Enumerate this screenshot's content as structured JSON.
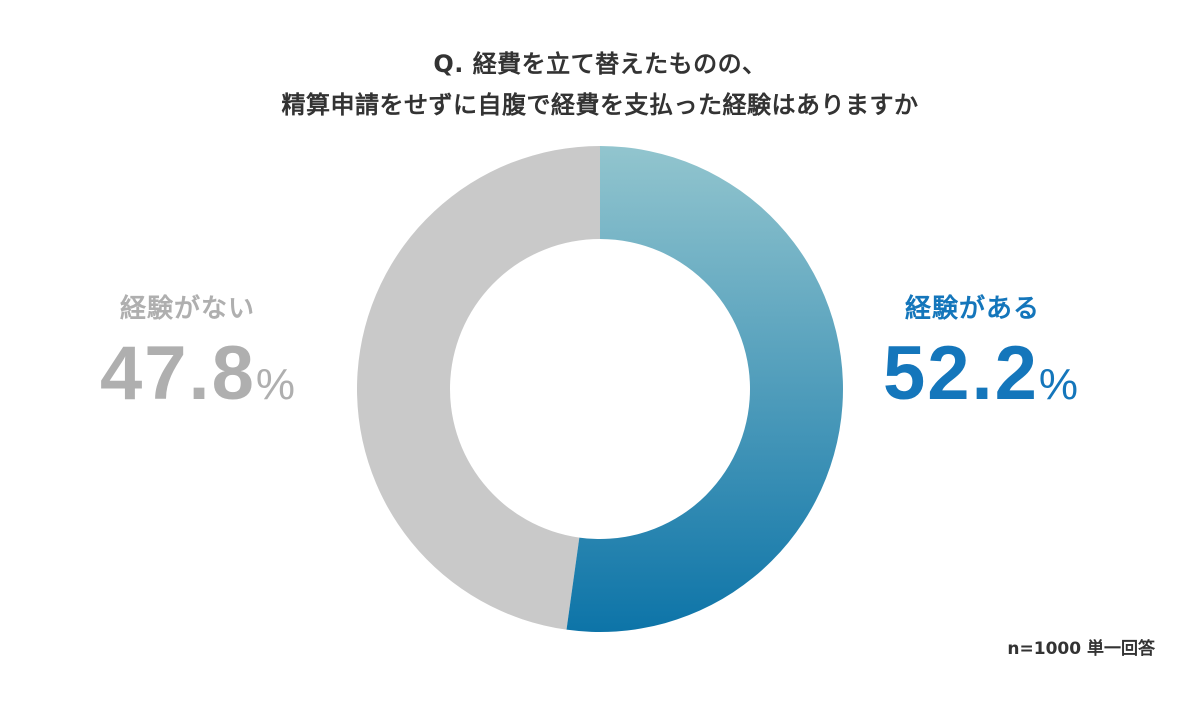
{
  "title": {
    "line1": "Q. 経費を立て替えたものの、",
    "line2": "精算申請をせずに自腹で経費を支払った経験はありますか"
  },
  "labels": {
    "no": {
      "name": "経験がない",
      "value": "47.8",
      "unit": "%"
    },
    "yes": {
      "name": "経験がある",
      "value": "52.2",
      "unit": "%"
    }
  },
  "footnote": "n=1000 単一回答",
  "colors": {
    "yes_gradient_top": "#92C5CE",
    "yes_gradient_bottom": "#0D74A8",
    "no_segment": "#C9C9C9",
    "yes_label": "#1476BB",
    "no_label": "#AFAFAF",
    "title_text": "#333333"
  },
  "chart_data": {
    "type": "pie",
    "variant": "donut",
    "title": "Q. 経費を立て替えたものの、精算申請をせずに自腹で経費を支払った経験はありますか",
    "categories": [
      "経験がある",
      "経験がない"
    ],
    "values": [
      52.2,
      47.8
    ],
    "unit": "%",
    "start_angle": "top (12 o'clock), clockwise",
    "legend": "none (direct labels left/right)",
    "annotations": [
      "n=1000 単一回答"
    ]
  }
}
